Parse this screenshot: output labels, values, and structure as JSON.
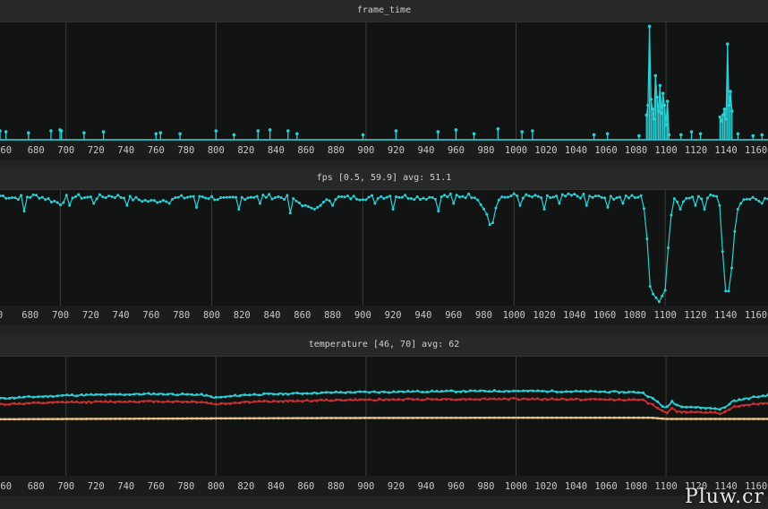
{
  "chart_data": [
    {
      "type": "line",
      "title": "frame_time",
      "xlim": [
        656,
        1168
      ],
      "ylim": [
        0,
        6
      ],
      "grid": true,
      "color": "#2ad0d6",
      "x_ticks": [
        660,
        680,
        700,
        720,
        740,
        760,
        780,
        800,
        820,
        840,
        860,
        880,
        900,
        920,
        940,
        960,
        980,
        1000,
        1020,
        1040,
        1060,
        1080,
        1100,
        1120,
        1140,
        1160
      ],
      "tick_labels": [
        "60",
        "680",
        "700",
        "720",
        "740",
        "760",
        "780",
        "800",
        "820",
        "840",
        "860",
        "880",
        "900",
        "920",
        "940",
        "960",
        "980",
        "1000",
        "1020",
        "1040",
        "1060",
        "1080",
        "1100",
        "1120",
        "1140",
        "1160"
      ],
      "baseline": 0.05,
      "spikes": [
        [
          656,
          0.5
        ],
        [
          660,
          0.45
        ],
        [
          675,
          0.4
        ],
        [
          690,
          0.5
        ],
        [
          696,
          0.55
        ],
        [
          697,
          0.5
        ],
        [
          712,
          0.4
        ],
        [
          725,
          0.45
        ],
        [
          760,
          0.35
        ],
        [
          763,
          0.4
        ],
        [
          776,
          0.35
        ],
        [
          800,
          0.5
        ],
        [
          812,
          0.3
        ],
        [
          828,
          0.5
        ],
        [
          836,
          0.55
        ],
        [
          848,
          0.5
        ],
        [
          854,
          0.35
        ],
        [
          898,
          0.3
        ],
        [
          920,
          0.5
        ],
        [
          948,
          0.45
        ],
        [
          960,
          0.55
        ],
        [
          972,
          0.35
        ],
        [
          988,
          0.6
        ],
        [
          1004,
          0.45
        ],
        [
          1011,
          0.5
        ],
        [
          1052,
          0.3
        ],
        [
          1061,
          0.35
        ],
        [
          1082,
          0.25
        ],
        [
          1087,
          1.3
        ],
        [
          1088,
          1.8
        ],
        [
          1089,
          5.8
        ],
        [
          1090,
          2.1
        ],
        [
          1091,
          1.6
        ],
        [
          1092,
          1.1
        ],
        [
          1093,
          3.3
        ],
        [
          1094,
          2.2
        ],
        [
          1095,
          1.5
        ],
        [
          1096,
          2.8
        ],
        [
          1097,
          1.4
        ],
        [
          1098,
          2.4
        ],
        [
          1099,
          1.8
        ],
        [
          1100,
          0.8
        ],
        [
          1101,
          2.0
        ],
        [
          1102,
          0.3
        ],
        [
          1110,
          0.3
        ],
        [
          1117,
          0.45
        ],
        [
          1123,
          0.35
        ],
        [
          1136,
          1.2
        ],
        [
          1137,
          1.0
        ],
        [
          1138,
          1.3
        ],
        [
          1139,
          1.6
        ],
        [
          1140,
          1.1
        ],
        [
          1141,
          4.9
        ],
        [
          1142,
          1.8
        ],
        [
          1143,
          2.5
        ],
        [
          1144,
          1.5
        ],
        [
          1148,
          0.35
        ],
        [
          1158,
          0.25
        ],
        [
          1164,
          0.3
        ]
      ]
    },
    {
      "type": "line",
      "title": "fps [0.5, 59.9] avg: 51.1",
      "xlim": [
        660,
        1168
      ],
      "ylim": [
        0,
        60
      ],
      "grid": true,
      "color": "#2ad0d6",
      "x_ticks": [
        660,
        680,
        700,
        720,
        740,
        760,
        780,
        800,
        820,
        840,
        860,
        880,
        900,
        920,
        940,
        960,
        980,
        1000,
        1020,
        1040,
        1060,
        1080,
        1100,
        1120,
        1140,
        1160
      ],
      "tick_labels": [
        "0",
        "680",
        "700",
        "720",
        "740",
        "760",
        "780",
        "800",
        "820",
        "840",
        "860",
        "880",
        "900",
        "920",
        "940",
        "960",
        "980",
        "1000",
        "1020",
        "1040",
        "1060",
        "1080",
        "1100",
        "1120",
        "1140",
        "1160"
      ],
      "baseline": 58,
      "segments": [
        [
          [
            660,
            57
          ],
          [
            670,
            56
          ],
          [
            685,
            57
          ],
          [
            700,
            53
          ],
          [
            705,
            57
          ],
          [
            720,
            56
          ],
          [
            735,
            57
          ],
          [
            760,
            54
          ],
          [
            790,
            57
          ],
          [
            810,
            55
          ],
          [
            830,
            57
          ],
          [
            850,
            56
          ],
          [
            868,
            50
          ],
          [
            880,
            56
          ],
          [
            900,
            56
          ],
          [
            920,
            57
          ],
          [
            940,
            56
          ],
          [
            960,
            57
          ],
          [
            975,
            57
          ],
          [
            983,
            46
          ],
          [
            985,
            38
          ],
          [
            987,
            48
          ],
          [
            990,
            56
          ],
          [
            1000,
            57
          ],
          [
            1020,
            56
          ],
          [
            1040,
            57
          ],
          [
            1060,
            56
          ],
          [
            1084,
            57
          ],
          [
            1087,
            47
          ],
          [
            1090,
            10
          ],
          [
            1092,
            6
          ],
          [
            1094,
            4
          ],
          [
            1096,
            2
          ],
          [
            1098,
            5
          ],
          [
            1100,
            8
          ],
          [
            1102,
            30
          ],
          [
            1104,
            47
          ],
          [
            1106,
            56
          ],
          [
            1108,
            55
          ],
          [
            1110,
            50
          ],
          [
            1115,
            57
          ],
          [
            1125,
            56
          ],
          [
            1135,
            57
          ],
          [
            1137,
            47
          ],
          [
            1139,
            9
          ],
          [
            1141,
            6
          ],
          [
            1143,
            9
          ],
          [
            1145,
            30
          ],
          [
            1147,
            47
          ],
          [
            1150,
            56
          ],
          [
            1160,
            55
          ],
          [
            1168,
            56
          ]
        ]
      ],
      "dips": [
        [
          676,
          49
        ],
        [
          693,
          53
        ],
        [
          706,
          52
        ],
        [
          722,
          53
        ],
        [
          744,
          52
        ],
        [
          772,
          53
        ],
        [
          790,
          51
        ],
        [
          818,
          50
        ],
        [
          832,
          53
        ],
        [
          845,
          50
        ],
        [
          852,
          48
        ],
        [
          880,
          52
        ],
        [
          895,
          51
        ],
        [
          908,
          53
        ],
        [
          920,
          50
        ],
        [
          935,
          52
        ],
        [
          950,
          49
        ],
        [
          960,
          53
        ],
        [
          1004,
          52
        ],
        [
          1020,
          50
        ],
        [
          1030,
          53
        ],
        [
          1048,
          52
        ],
        [
          1062,
          51
        ],
        [
          1072,
          53
        ],
        [
          1113,
          44
        ],
        [
          1120,
          52
        ],
        [
          1126,
          50
        ],
        [
          1150,
          53
        ],
        [
          1157,
          51
        ],
        [
          1164,
          53
        ]
      ]
    },
    {
      "type": "line",
      "title": "temperature [46, 70] avg: 62",
      "xlim": [
        656,
        1168
      ],
      "ylim": [
        40,
        80
      ],
      "grid": true,
      "x_ticks": [
        660,
        680,
        700,
        720,
        740,
        760,
        780,
        800,
        820,
        840,
        860,
        880,
        900,
        920,
        940,
        960,
        980,
        1000,
        1020,
        1040,
        1060,
        1080,
        1100,
        1120,
        1140,
        1160
      ],
      "tick_labels": [
        "60",
        "680",
        "700",
        "720",
        "740",
        "760",
        "780",
        "800",
        "820",
        "840",
        "860",
        "880",
        "900",
        "920",
        "940",
        "960",
        "980",
        "1000",
        "1020",
        "1040",
        "1060",
        "1080",
        "1100",
        "1120",
        "1140",
        "1160"
      ],
      "series": [
        {
          "color": "#2ad0d6",
          "values": [
            [
              656,
              66
            ],
            [
              700,
              67
            ],
            [
              760,
              67.5
            ],
            [
              790,
              67.2
            ],
            [
              800,
              66.2
            ],
            [
              820,
              67.2
            ],
            [
              880,
              68
            ],
            [
              940,
              68.3
            ],
            [
              1000,
              68.5
            ],
            [
              1060,
              68.2
            ],
            [
              1084,
              68
            ],
            [
              1094,
              65
            ],
            [
              1100,
              62.5
            ],
            [
              1104,
              65
            ],
            [
              1108,
              63.5
            ],
            [
              1120,
              63
            ],
            [
              1136,
              62.5
            ],
            [
              1140,
              63
            ],
            [
              1144,
              65
            ],
            [
              1160,
              66.5
            ],
            [
              1168,
              67
            ]
          ]
        },
        {
          "color": "#c93032",
          "values": [
            [
              656,
              64
            ],
            [
              700,
              64.7
            ],
            [
              760,
              65
            ],
            [
              790,
              64.8
            ],
            [
              800,
              64
            ],
            [
              820,
              64.8
            ],
            [
              880,
              65.4
            ],
            [
              940,
              65.7
            ],
            [
              1000,
              65.8
            ],
            [
              1060,
              65.6
            ],
            [
              1084,
              65.5
            ],
            [
              1094,
              63
            ],
            [
              1100,
              61
            ],
            [
              1104,
              62.5
            ],
            [
              1108,
              61.5
            ],
            [
              1120,
              61.5
            ],
            [
              1136,
              61
            ],
            [
              1140,
              61.5
            ],
            [
              1144,
              63
            ],
            [
              1160,
              64.2
            ],
            [
              1168,
              64.5
            ]
          ]
        },
        {
          "color": "#e8c48a",
          "values": [
            [
              656,
              59
            ],
            [
              760,
              59.2
            ],
            [
              880,
              59.4
            ],
            [
              1000,
              59.5
            ],
            [
              1090,
              59.5
            ],
            [
              1100,
              59.1
            ],
            [
              1168,
              59.1
            ]
          ]
        }
      ]
    }
  ],
  "watermark": "Pluw.cr"
}
